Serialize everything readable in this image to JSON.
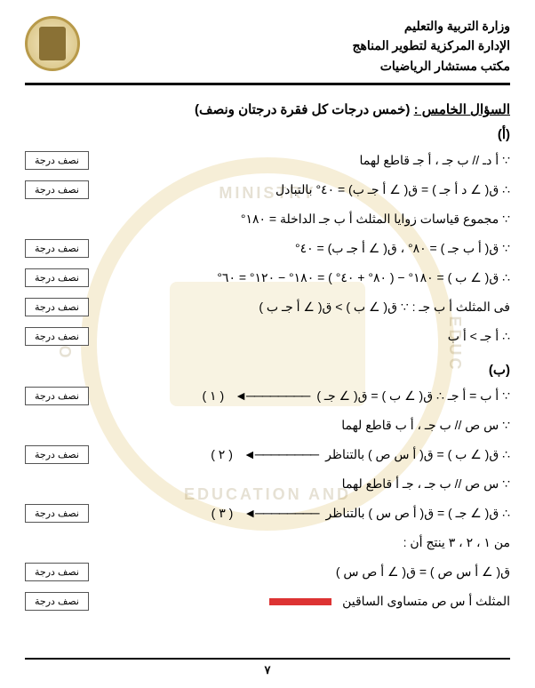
{
  "header": {
    "line1": "وزارة التربية والتعليم",
    "line2": "الإدارة المركزية لتطوير المناهج",
    "line3": "مكتب مستشار الرياضيات"
  },
  "question": {
    "label": "السؤال الخامس :",
    "marks": "(خمس درجات كل فقرة درجتان ونصف)"
  },
  "part_a_label": "(أ)",
  "part_b_label": "(ب)",
  "mark_label": "نصف درجة",
  "lines_a": [
    {
      "text": "∵ أ دـ // ب جـ ، أ جـ قاطع لهما",
      "box": true
    },
    {
      "text": "∴ ق( ∠ د أ جـ ) = ق( ∠ أ جـ ب) = ٤٠° بالتبادل",
      "box": true
    },
    {
      "text": "∵ مجموع قياسات زوايا المثلث أ ب جـ الداخلة = ١٨٠°",
      "box": false
    },
    {
      "text": "∵ ق( أ ب جـ ) = ٨٠° ، ق( ∠ أ جـ ب) = ٤٠°",
      "box": true
    },
    {
      "text": "∴ ق( ∠ ب ) = ١٨٠° − ( ٨٠° + ٤٠° ) = ١٨٠° − ١٢٠° = ٦٠°",
      "box": true
    },
    {
      "text": "فى المثلث أ ب جـ : ∵ ق( ∠ ب ) > ق( ∠ أ جـ ب )",
      "box": true
    },
    {
      "text": "∴ أ جـ > أ ب",
      "box": true
    }
  ],
  "lines_b": [
    {
      "text": "∵ أ ب = أ جـ    ∴ ق( ∠ ب ) = ق( ∠ جـ )",
      "arrow": true,
      "eq": "( ١ )",
      "box": true
    },
    {
      "text": "∵ س ص // ب جـ ، أ ب قاطع لهما",
      "box": false
    },
    {
      "text": "∴ ق( ∠ ب ) = ق( أ س ص ) بالتناظر",
      "arrow": true,
      "eq": "( ٢ )",
      "box": true
    },
    {
      "text": "∵ س ص // ب جـ ، جـ أ قاطع لهما",
      "box": false
    },
    {
      "text": "∴ ق( ∠ جـ ) = ق( أ ص س ) بالتناظر",
      "arrow": true,
      "eq": "( ٣ )",
      "box": true
    },
    {
      "text": "من ١ ، ٢ ، ٣ ينتج أن :",
      "box": false
    },
    {
      "text": "ق( ∠ أ س ص ) = ق( ∠ أ ص س )",
      "box": true
    },
    {
      "text": "المثلث أ س ص متساوى الساقين",
      "box": true,
      "red": true
    }
  ],
  "wm": {
    "top": "MINISTRY",
    "right": "EDUC",
    "bottom": "EDUCATION AND",
    "left": "OF"
  },
  "page_number": "٧",
  "colors": {
    "gold": "#b89a4a",
    "text": "#000000",
    "red": "#d33333"
  }
}
